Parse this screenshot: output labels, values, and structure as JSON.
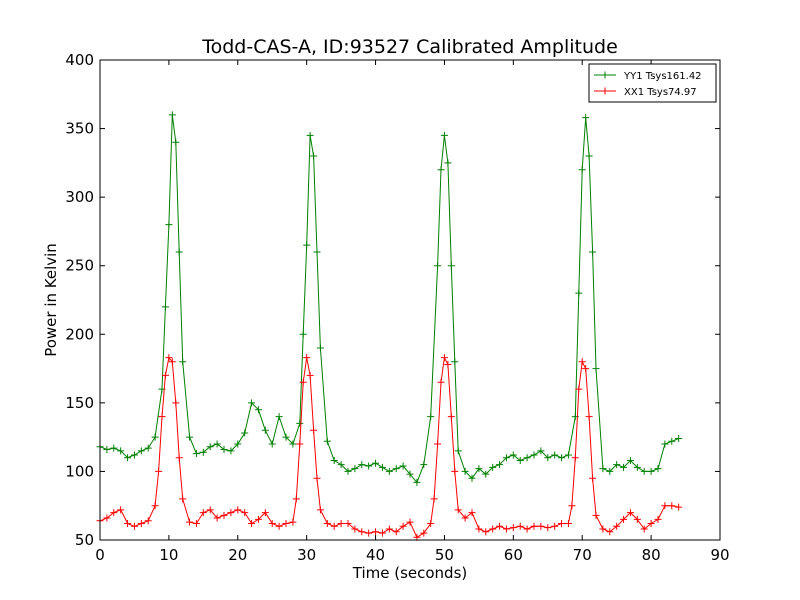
{
  "chart_data": {
    "type": "line",
    "title": "Todd-CAS-A, ID:93527 Calibrated Amplitude",
    "xlabel": "Time (seconds)",
    "ylabel": "Power in Kelvin",
    "xlim": [
      0,
      90
    ],
    "ylim": [
      50,
      400
    ],
    "xticks": [
      0,
      10,
      20,
      30,
      40,
      50,
      60,
      70,
      80,
      90
    ],
    "yticks": [
      50,
      100,
      150,
      200,
      250,
      300,
      350,
      400
    ],
    "grid": false,
    "legend_position": "top-right",
    "series": [
      {
        "name": "YY1 Tsys161.42",
        "color": "#008000",
        "marker": "+",
        "x": [
          0,
          1,
          2,
          3,
          4,
          5,
          6,
          7,
          8,
          9,
          9.5,
          10,
          10.5,
          11,
          11.5,
          12,
          13,
          14,
          15,
          16,
          17,
          18,
          19,
          20,
          21,
          22,
          23,
          24,
          25,
          26,
          27,
          28,
          29,
          29.5,
          30,
          30.5,
          31,
          31.5,
          32,
          33,
          34,
          35,
          36,
          37,
          38,
          39,
          40,
          41,
          42,
          43,
          44,
          45,
          46,
          47,
          48,
          49,
          49.5,
          50,
          50.5,
          51,
          51.5,
          52,
          53,
          54,
          55,
          56,
          57,
          58,
          59,
          60,
          61,
          62,
          63,
          64,
          65,
          66,
          67,
          68,
          69,
          69.5,
          70,
          70.5,
          71,
          71.5,
          72,
          73,
          74,
          75,
          76,
          77,
          78,
          79,
          80,
          81,
          82,
          83,
          84
        ],
        "values": [
          118,
          116,
          117,
          115,
          110,
          112,
          115,
          117,
          125,
          160,
          220,
          280,
          360,
          340,
          260,
          180,
          125,
          113,
          114,
          118,
          120,
          116,
          115,
          120,
          128,
          150,
          145,
          130,
          120,
          140,
          125,
          120,
          135,
          200,
          265,
          345,
          330,
          260,
          190,
          122,
          108,
          105,
          100,
          102,
          105,
          104,
          106,
          103,
          100,
          102,
          104,
          98,
          92,
          105,
          140,
          250,
          320,
          345,
          325,
          250,
          180,
          115,
          100,
          95,
          102,
          98,
          103,
          105,
          110,
          112,
          108,
          110,
          112,
          115,
          110,
          112,
          110,
          112,
          140,
          230,
          320,
          358,
          330,
          260,
          175,
          102,
          100,
          105,
          103,
          108,
          103,
          100,
          100,
          102,
          120,
          122,
          124
        ]
      },
      {
        "name": "XX1 Tsys74.97",
        "color": "#ff0000",
        "marker": "+",
        "x": [
          0,
          1,
          2,
          3,
          4,
          5,
          6,
          7,
          8,
          8.5,
          9,
          9.5,
          10,
          10.5,
          11,
          11.5,
          12,
          13,
          14,
          15,
          16,
          17,
          18,
          19,
          20,
          21,
          22,
          23,
          24,
          25,
          26,
          27,
          28,
          28.5,
          29,
          29.5,
          30,
          30.5,
          31,
          31.5,
          32,
          33,
          34,
          35,
          36,
          37,
          38,
          39,
          40,
          41,
          42,
          43,
          44,
          45,
          46,
          47,
          48,
          48.5,
          49,
          49.5,
          50,
          50.5,
          51,
          51.5,
          52,
          53,
          54,
          55,
          56,
          57,
          58,
          59,
          60,
          61,
          62,
          63,
          64,
          65,
          66,
          67,
          68,
          68.5,
          69,
          69.5,
          70,
          70.5,
          71,
          71.5,
          72,
          73,
          74,
          75,
          76,
          77,
          78,
          79,
          80,
          81,
          82,
          83,
          84
        ],
        "values": [
          64,
          66,
          70,
          72,
          62,
          60,
          62,
          64,
          75,
          100,
          140,
          170,
          183,
          180,
          150,
          110,
          80,
          63,
          62,
          70,
          72,
          66,
          68,
          70,
          72,
          70,
          62,
          65,
          70,
          62,
          60,
          62,
          63,
          80,
          120,
          165,
          183,
          170,
          130,
          95,
          72,
          62,
          60,
          62,
          62,
          58,
          56,
          55,
          56,
          55,
          58,
          56,
          60,
          63,
          52,
          55,
          62,
          80,
          120,
          165,
          183,
          178,
          140,
          100,
          72,
          66,
          70,
          58,
          56,
          58,
          60,
          58,
          59,
          60,
          58,
          60,
          60,
          59,
          60,
          62,
          62,
          75,
          110,
          160,
          180,
          175,
          140,
          95,
          68,
          58,
          56,
          60,
          65,
          70,
          65,
          58,
          62,
          65,
          75,
          75,
          74
        ]
      }
    ]
  }
}
